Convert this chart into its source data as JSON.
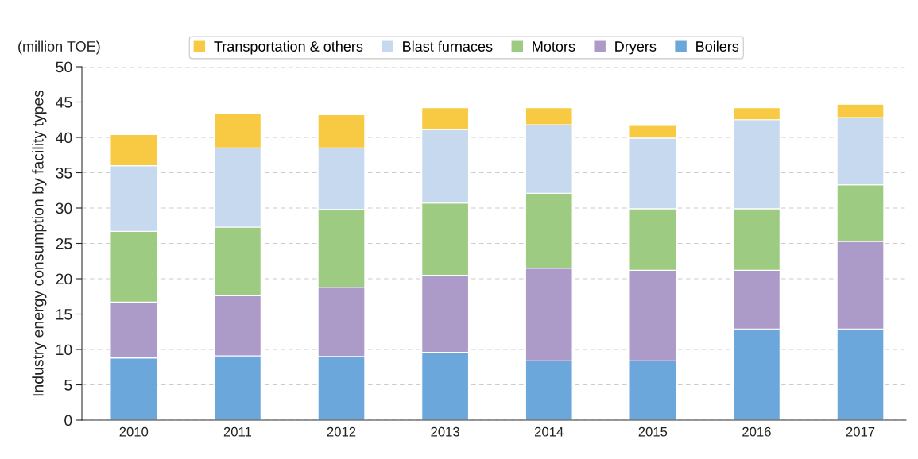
{
  "chart_data": {
    "type": "bar",
    "stacked": true,
    "ylabel": "Industry energy consumption by facility types",
    "annotations": [
      "(million TOE)"
    ],
    "categories": [
      "2010",
      "2011",
      "2012",
      "2013",
      "2014",
      "2015",
      "2016",
      "2017"
    ],
    "series": [
      {
        "name": "Boilers",
        "color": "#6ba7db",
        "values": [
          8.8,
          9.1,
          9.0,
          9.6,
          8.4,
          8.4,
          12.9,
          12.9
        ]
      },
      {
        "name": "Dryers",
        "color": "#ac9ac8",
        "values": [
          7.9,
          8.5,
          9.8,
          10.9,
          13.1,
          12.8,
          8.3,
          12.4
        ]
      },
      {
        "name": "Motors",
        "color": "#9ecb82",
        "values": [
          10.0,
          9.7,
          11.0,
          10.2,
          10.6,
          8.7,
          8.7,
          8.0
        ]
      },
      {
        "name": "Blast furnaces",
        "color": "#c7d9ee",
        "values": [
          9.3,
          11.2,
          8.7,
          10.4,
          9.7,
          10.0,
          12.6,
          9.5
        ]
      },
      {
        "name": "Transportation & others",
        "color": "#f8c943",
        "values": [
          4.4,
          4.9,
          4.7,
          3.1,
          2.4,
          1.8,
          1.7,
          1.9
        ]
      }
    ],
    "ylim": [
      0,
      50
    ],
    "yticks": [
      0,
      5,
      10,
      15,
      20,
      25,
      30,
      35,
      40,
      45,
      50
    ],
    "grid": "y",
    "legend": "top"
  }
}
